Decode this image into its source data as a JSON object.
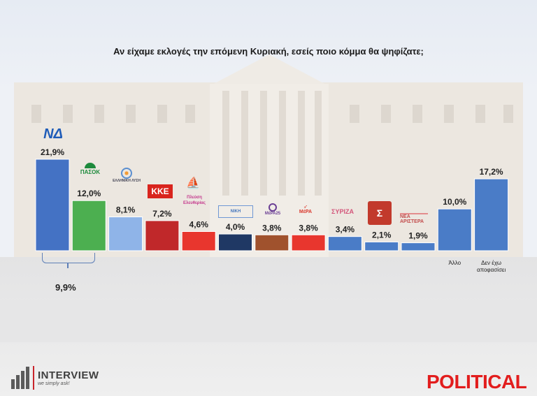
{
  "title": "Αν είχαμε εκλογές την επόμενη Κυριακή, εσείς ποιο κόμμα θα ψηφίζατε;",
  "chart_data": {
    "type": "bar",
    "title": "Αν είχαμε εκλογές την επόμενη Κυριακή, εσείς ποιο κόμμα θα ψηφίζατε;",
    "categories": [
      "ΝΔ",
      "ΠΑΣΟΚ",
      "Ελληνική Λύση",
      "ΚΚΕ",
      "Πλεύση Ελευθερίας",
      "Νίκη",
      "ΜέΡΑ25",
      "ΜέΡΑ",
      "ΣΥΡΙΖΑ",
      "Σπαρτιάτες",
      "Νέα Αριστερά",
      "Άλλο",
      "Δεν έχω αποφασίσει"
    ],
    "values": [
      21.9,
      12.0,
      8.1,
      7.2,
      4.6,
      4.0,
      3.8,
      3.8,
      3.4,
      2.1,
      1.9,
      10.0,
      17.2
    ],
    "value_labels": [
      "21,9%",
      "12,0%",
      "8,1%",
      "7,2%",
      "4,6%",
      "4,0%",
      "3,8%",
      "3,8%",
      "3,4%",
      "2,1%",
      "1,9%",
      "10,0%",
      "17,2%"
    ],
    "colors": [
      "#4472c4",
      "#4caf50",
      "#8fb4e8",
      "#c0282a",
      "#e8362e",
      "#1f3864",
      "#a0522d",
      "#e8362e",
      "#4a7cc7",
      "#4a7cc7",
      "#4a7cc7",
      "#4a7cc7",
      "#4a7cc7"
    ],
    "bottom_labels": [
      "",
      "",
      "",
      "",
      "",
      "",
      "",
      "",
      "",
      "",
      "",
      "Άλλο",
      "Δεν έχω αποφασίσει"
    ],
    "ylim": [
      0,
      25
    ],
    "xlabel": "",
    "ylabel": "",
    "annotation": {
      "text": "9,9%",
      "between": [
        "ΝΔ",
        "ΠΑΣΟΚ"
      ]
    }
  },
  "logos": {
    "nd": "ΝΔ",
    "pasok": "ΠΑΣΟΚ",
    "ellisi": "ΕΛΛΗΝΙΚΗ ΛΥΣΗ",
    "kke": "ΚΚΕ",
    "pe": "Πλεύση Ελευθερίας",
    "niki": "ΝΙΚΗ",
    "mera": "ΜέΡΑ25",
    "mr": "ΜέΡΑ",
    "syriza": "ΣΥΡΙΖΑ",
    "spartiates": "Σ",
    "nea_aristera": "ΝΕΑ ΑΡΙΣΤΕΡΑ"
  },
  "footer": {
    "interview_name": "INTERVIEW",
    "interview_tagline": "we simply ask!",
    "political": "POLITICAL"
  }
}
